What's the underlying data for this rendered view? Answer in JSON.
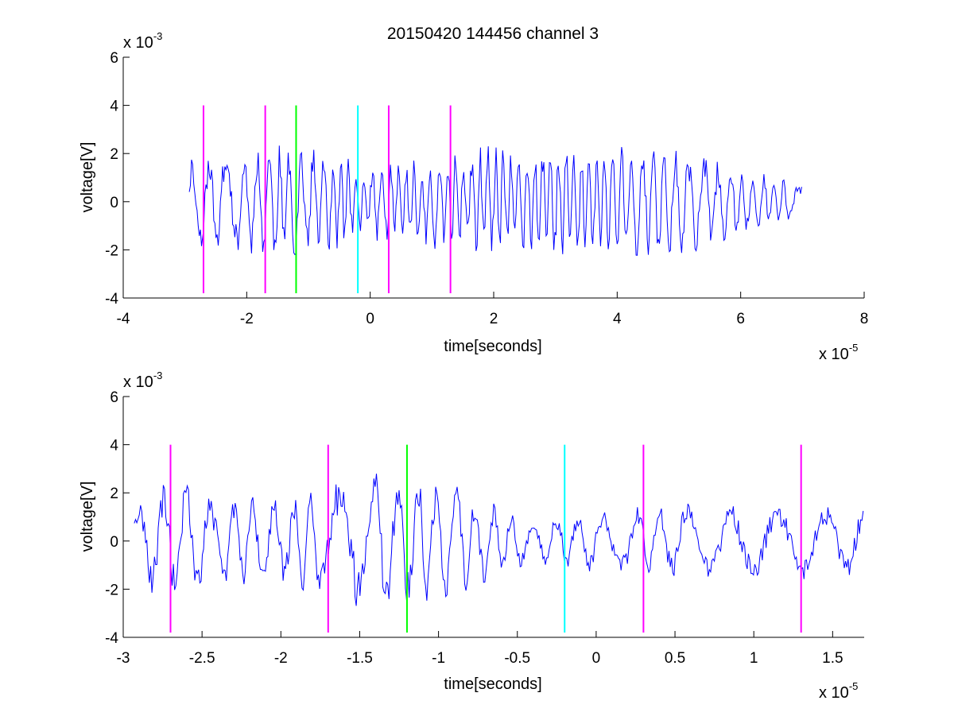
{
  "chart_data": [
    {
      "type": "line",
      "title": "20150420 144456 channel 3",
      "xlabel": "time[seconds]",
      "ylabel": "voltage[V]",
      "x_multiplier": {
        "base": "x 10",
        "exponent": "-5"
      },
      "y_multiplier": {
        "base": "x 10",
        "exponent": "-3"
      },
      "xlim": [
        -4,
        8
      ],
      "ylim": [
        -4,
        6
      ],
      "xticks": [
        "-4",
        "-2",
        "0",
        "2",
        "4",
        "6",
        "8"
      ],
      "yticks": [
        "-4",
        "-2",
        "0",
        "2",
        "4",
        "6"
      ],
      "grid": false,
      "series": [
        {
          "color": "#0000ff",
          "x_range": [
            -2.93,
            7.0
          ],
          "envelope": [
            {
              "x": -2.93,
              "amp": 1.9
            },
            {
              "x": -1.2,
              "amp": 2.6
            },
            {
              "x": 0.0,
              "amp": 1.6
            },
            {
              "x": 2.0,
              "amp": 2.4
            },
            {
              "x": 3.5,
              "amp": 2.5
            },
            {
              "x": 5.0,
              "amp": 2.4
            },
            {
              "x": 6.2,
              "amp": 1.3
            },
            {
              "x": 7.0,
              "amp": 0.8
            }
          ]
        }
      ],
      "vlines": [
        {
          "x": -2.7,
          "color": "#ff00ff",
          "y": [
            -3.8,
            4.0
          ]
        },
        {
          "x": -1.7,
          "color": "#ff00ff",
          "y": [
            -3.8,
            4.0
          ]
        },
        {
          "x": -1.2,
          "color": "#00ff00",
          "y": [
            -3.8,
            4.0
          ]
        },
        {
          "x": -0.2,
          "color": "#00ffff",
          "y": [
            -3.8,
            4.0
          ]
        },
        {
          "x": 0.3,
          "color": "#ff00ff",
          "y": [
            -3.8,
            4.0
          ]
        },
        {
          "x": 1.3,
          "color": "#ff00ff",
          "y": [
            -3.8,
            4.0
          ]
        }
      ]
    },
    {
      "type": "line",
      "xlabel": "time[seconds]",
      "ylabel": "voltage[V]",
      "x_multiplier": {
        "base": "x 10",
        "exponent": "-5"
      },
      "y_multiplier": {
        "base": "x 10",
        "exponent": "-3"
      },
      "xlim": [
        -3.0,
        1.7
      ],
      "ylim": [
        -4,
        6
      ],
      "xticks": [
        "-3",
        "-2.5",
        "-2",
        "-1.5",
        "-1",
        "-0.5",
        "0",
        "0.5",
        "1",
        "1.5"
      ],
      "yticks": [
        "-4",
        "-2",
        "0",
        "2",
        "4",
        "6"
      ],
      "grid": false,
      "series": [
        {
          "color": "#0000ff",
          "x_range": [
            -2.93,
            1.7
          ],
          "envelope": [
            {
              "x": -2.93,
              "amp": 1.8
            },
            {
              "x": -2.7,
              "amp": 2.6
            },
            {
              "x": -2.0,
              "amp": 1.8
            },
            {
              "x": -1.4,
              "amp": 3.2
            },
            {
              "x": -0.8,
              "amp": 2.2
            },
            {
              "x": -0.4,
              "amp": 0.9
            },
            {
              "x": 0.0,
              "amp": 1.4
            },
            {
              "x": 0.5,
              "amp": 1.6
            },
            {
              "x": 1.2,
              "amp": 1.6
            },
            {
              "x": 1.7,
              "amp": 1.6
            }
          ]
        }
      ],
      "vlines": [
        {
          "x": -2.7,
          "color": "#ff00ff",
          "y": [
            -3.8,
            4.0
          ]
        },
        {
          "x": -1.7,
          "color": "#ff00ff",
          "y": [
            -3.8,
            4.0
          ]
        },
        {
          "x": -1.2,
          "color": "#00ff00",
          "y": [
            -3.8,
            4.0
          ]
        },
        {
          "x": -0.2,
          "color": "#00ffff",
          "y": [
            -3.8,
            4.0
          ]
        },
        {
          "x": 0.3,
          "color": "#ff00ff",
          "y": [
            -3.8,
            4.0
          ]
        },
        {
          "x": 1.3,
          "color": "#ff00ff",
          "y": [
            -3.8,
            4.0
          ]
        }
      ]
    }
  ]
}
